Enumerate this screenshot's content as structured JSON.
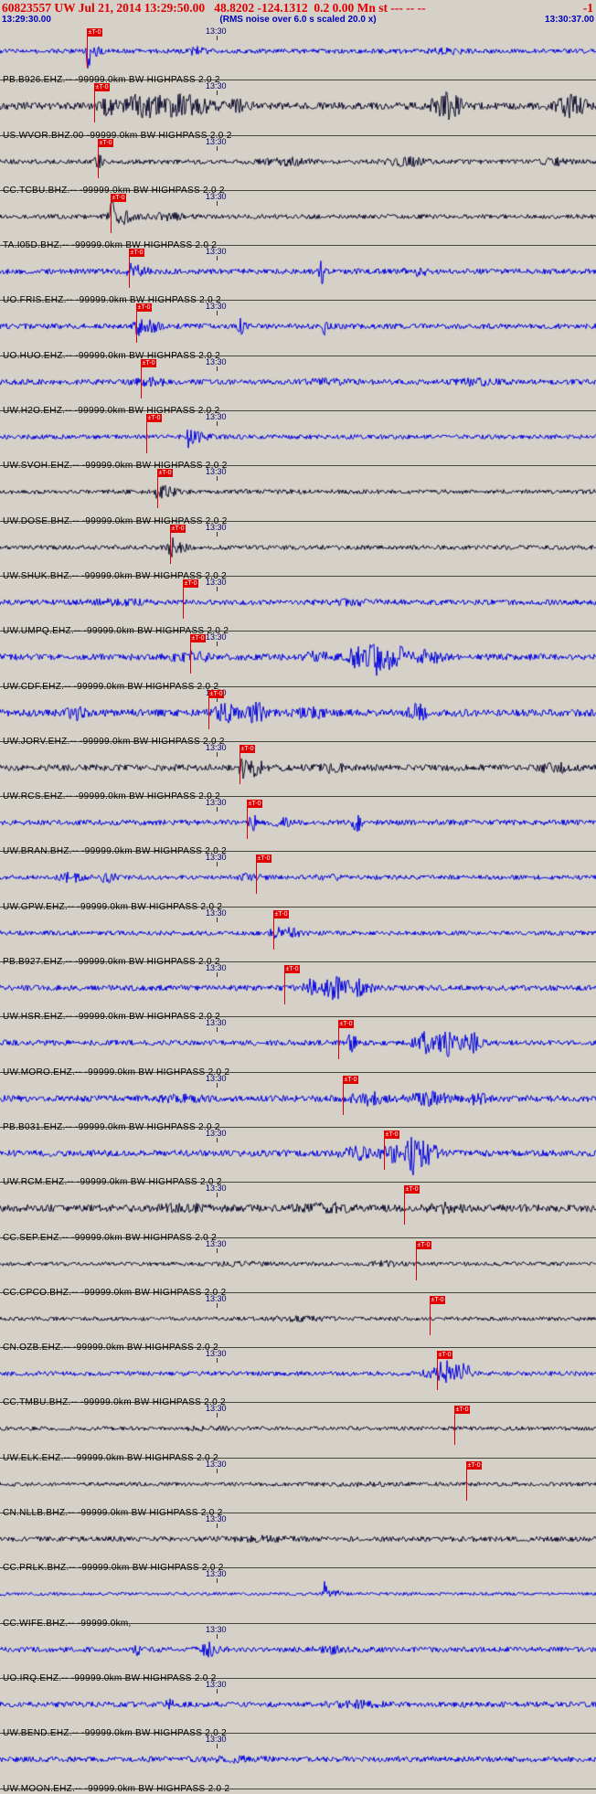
{
  "header": {
    "title": "60823557 UW Jul 21, 2014 13:29:50.00   48.8202 -124.1312  0.2 0.00 Mn st --- -- --",
    "right_value": "-1",
    "start_time": "13:29:30.00",
    "rms_note": "(RMS noise over 6.0 s scaled 20.0 x)",
    "end_time": "13:30:37.00"
  },
  "colors": {
    "blue": "#0000e0",
    "dark": "#0c0c2e",
    "pick": "#e00000",
    "background": "#d5d1c8"
  },
  "pick_flag_label": "±T-0",
  "tick": {
    "label": "13:30",
    "x_fraction": 0.3635
  },
  "traces": [
    {
      "label": "PB.B926.EHZ.-- -99999.0km BW HIGHPASS 2.0 2",
      "color": "blue",
      "pick_x": 0.146,
      "seed": 101,
      "base": 2.5,
      "bursts": [
        {
          "x": 0.148,
          "w": 0.004,
          "a": 16
        },
        {
          "x": 0.158,
          "w": 0.01,
          "a": 6
        },
        {
          "x": 0.33,
          "w": 0.02,
          "a": 3
        },
        {
          "x": 0.75,
          "w": 0.03,
          "a": 2
        }
      ]
    },
    {
      "label": "US.WVOR.BHZ.00 -99999.0km BW HIGHPASS 2.0 2",
      "color": "dark",
      "pick_x": 0.158,
      "seed": 102,
      "base": 4,
      "bursts": [
        {
          "x": 0.18,
          "w": 0.012,
          "a": 10
        },
        {
          "x": 0.24,
          "w": 0.03,
          "a": 14
        },
        {
          "x": 0.31,
          "w": 0.04,
          "a": 10
        },
        {
          "x": 0.4,
          "w": 0.02,
          "a": 5
        },
        {
          "x": 0.75,
          "w": 0.025,
          "a": 12
        },
        {
          "x": 0.96,
          "w": 0.025,
          "a": 10
        }
      ]
    },
    {
      "label": "CC.TCBU.BHZ.-- -99999.0km BW HIGHPASS 2.0 2",
      "color": "dark",
      "pick_x": 0.164,
      "seed": 103,
      "base": 2.5,
      "bursts": [
        {
          "x": 0.165,
          "w": 0.006,
          "a": 7
        },
        {
          "x": 0.48,
          "w": 0.04,
          "a": 3
        },
        {
          "x": 0.68,
          "w": 0.03,
          "a": 4
        },
        {
          "x": 0.93,
          "w": 0.02,
          "a": 3
        }
      ]
    },
    {
      "label": "TA.I05D.BHZ.-- -99999.0km BW HIGHPASS 2.0 2",
      "color": "dark",
      "pick_x": 0.186,
      "seed": 104,
      "base": 2.5,
      "bursts": [
        {
          "x": 0.187,
          "w": 0.004,
          "a": 22
        },
        {
          "x": 0.205,
          "w": 0.018,
          "a": 7
        },
        {
          "x": 0.28,
          "w": 0.03,
          "a": 3
        }
      ]
    },
    {
      "label": "UO.FRIS.EHZ.-- -99999.0km BW HIGHPASS 2.0 2",
      "color": "blue",
      "pick_x": 0.216,
      "seed": 105,
      "base": 3,
      "bursts": [
        {
          "x": 0.218,
          "w": 0.005,
          "a": 9
        },
        {
          "x": 0.235,
          "w": 0.015,
          "a": 5
        },
        {
          "x": 0.54,
          "w": 0.005,
          "a": 13
        },
        {
          "x": 0.7,
          "w": 0.02,
          "a": 3
        }
      ]
    },
    {
      "label": "UO.HUO.EHZ.-- -99999.0km BW HIGHPASS 2.0 2",
      "color": "blue",
      "pick_x": 0.229,
      "seed": 106,
      "base": 3,
      "bursts": [
        {
          "x": 0.231,
          "w": 0.005,
          "a": 11
        },
        {
          "x": 0.25,
          "w": 0.015,
          "a": 6
        },
        {
          "x": 0.405,
          "w": 0.006,
          "a": 7
        },
        {
          "x": 0.545,
          "w": 0.005,
          "a": 11
        }
      ]
    },
    {
      "label": "UW.H2O.EHZ.-- -99999.0km BW HIGHPASS 2.0 2",
      "color": "blue",
      "pick_x": 0.236,
      "seed": 107,
      "base": 3,
      "bursts": [
        {
          "x": 0.25,
          "w": 0.03,
          "a": 3
        },
        {
          "x": 0.55,
          "w": 0.04,
          "a": 2
        },
        {
          "x": 0.8,
          "w": 0.03,
          "a": 2.5
        }
      ]
    },
    {
      "label": "UW.SVOH.EHZ.-- -99999.0km BW HIGHPASS 2.0 2",
      "color": "blue",
      "pick_x": 0.246,
      "seed": 108,
      "base": 2.5,
      "bursts": [
        {
          "x": 0.318,
          "w": 0.005,
          "a": 13
        },
        {
          "x": 0.335,
          "w": 0.018,
          "a": 4
        }
      ]
    },
    {
      "label": "UW.DOSE.BHZ.-- -99999.0km BW HIGHPASS 2.0 2",
      "color": "dark",
      "pick_x": 0.264,
      "seed": 109,
      "base": 2.5,
      "bursts": [
        {
          "x": 0.266,
          "w": 0.004,
          "a": 12
        },
        {
          "x": 0.282,
          "w": 0.015,
          "a": 5
        }
      ]
    },
    {
      "label": "UW.SHUK.BHZ.-- -99999.0km BW HIGHPASS 2.0 2",
      "color": "dark",
      "pick_x": 0.285,
      "seed": 110,
      "base": 2.5,
      "bursts": [
        {
          "x": 0.287,
          "w": 0.005,
          "a": 13
        },
        {
          "x": 0.302,
          "w": 0.015,
          "a": 4
        }
      ]
    },
    {
      "label": "UW.UMPQ.EHZ.-- -99999.0km BW HIGHPASS 2.0 2",
      "color": "blue",
      "pick_x": 0.307,
      "seed": 111,
      "base": 3,
      "bursts": [
        {
          "x": 0.2,
          "w": 0.05,
          "a": 1.5
        },
        {
          "x": 0.6,
          "w": 0.05,
          "a": 1.5
        }
      ]
    },
    {
      "label": "UW.CDF.EHZ.-- -99999.0km BW HIGHPASS 2.0 2",
      "color": "blue",
      "pick_x": 0.319,
      "seed": 112,
      "base": 3.5,
      "bursts": [
        {
          "x": 0.32,
          "w": 0.03,
          "a": 4
        },
        {
          "x": 0.53,
          "w": 0.02,
          "a": 5
        },
        {
          "x": 0.6,
          "w": 0.02,
          "a": 10
        },
        {
          "x": 0.635,
          "w": 0.015,
          "a": 16
        },
        {
          "x": 0.665,
          "w": 0.02,
          "a": 10
        },
        {
          "x": 0.72,
          "w": 0.02,
          "a": 6
        }
      ]
    },
    {
      "label": "UW.JORV.EHZ.-- -99999.0km BW HIGHPASS 2.0 2",
      "color": "blue",
      "pick_x": 0.35,
      "seed": 113,
      "base": 4,
      "bursts": [
        {
          "x": 0.13,
          "w": 0.02,
          "a": 5
        },
        {
          "x": 0.38,
          "w": 0.02,
          "a": 8
        },
        {
          "x": 0.43,
          "w": 0.015,
          "a": 9
        },
        {
          "x": 0.52,
          "w": 0.02,
          "a": 5
        },
        {
          "x": 0.7,
          "w": 0.015,
          "a": 8
        }
      ]
    },
    {
      "label": "UW.RCS.EHZ.-- -99999.0km BW HIGHPASS 2.0 2",
      "color": "dark",
      "pick_x": 0.402,
      "seed": 114,
      "base": 3.5,
      "bursts": [
        {
          "x": 0.405,
          "w": 0.008,
          "a": 10
        },
        {
          "x": 0.43,
          "w": 0.012,
          "a": 8
        },
        {
          "x": 0.56,
          "w": 0.02,
          "a": 4
        },
        {
          "x": 0.93,
          "w": 0.02,
          "a": 5
        }
      ]
    },
    {
      "label": "UW.BRAN.BHZ.-- -99999.0km BW HIGHPASS 2.0 2",
      "color": "blue",
      "pick_x": 0.414,
      "seed": 115,
      "base": 3,
      "bursts": [
        {
          "x": 0.425,
          "w": 0.006,
          "a": 10
        },
        {
          "x": 0.47,
          "w": 0.015,
          "a": 4
        },
        {
          "x": 0.6,
          "w": 0.008,
          "a": 8
        }
      ]
    },
    {
      "label": "UW.GPW.EHZ.-- -99999.0km BW HIGHPASS 2.0 2",
      "color": "blue",
      "pick_x": 0.429,
      "seed": 116,
      "base": 2.5,
      "bursts": [
        {
          "x": 0.12,
          "w": 0.02,
          "a": 4
        },
        {
          "x": 0.18,
          "w": 0.015,
          "a": 4
        },
        {
          "x": 0.42,
          "w": 0.02,
          "a": 2.5
        },
        {
          "x": 0.55,
          "w": 0.02,
          "a": 2.5
        }
      ]
    },
    {
      "label": "PB.B927.EHZ.-- -99999.0km BW HIGHPASS 2.0 2",
      "color": "blue",
      "pick_x": 0.459,
      "seed": 117,
      "base": 2.5,
      "bursts": [
        {
          "x": 0.46,
          "w": 0.008,
          "a": 8
        },
        {
          "x": 0.485,
          "w": 0.02,
          "a": 4
        }
      ]
    },
    {
      "label": "UW.HSR.EHZ.-- -99999.0km BW HIGHPASS 2.0 2",
      "color": "blue",
      "pick_x": 0.477,
      "seed": 118,
      "base": 3,
      "bursts": [
        {
          "x": 0.52,
          "w": 0.01,
          "a": 8
        },
        {
          "x": 0.56,
          "w": 0.02,
          "a": 12
        },
        {
          "x": 0.6,
          "w": 0.02,
          "a": 8
        }
      ]
    },
    {
      "label": "UW.MORO.EHZ.-- -99999.0km BW HIGHPASS 2.0 2",
      "color": "blue",
      "pick_x": 0.567,
      "seed": 119,
      "base": 3,
      "bursts": [
        {
          "x": 0.59,
          "w": 0.008,
          "a": 8
        },
        {
          "x": 0.71,
          "w": 0.015,
          "a": 10
        },
        {
          "x": 0.75,
          "w": 0.02,
          "a": 14
        },
        {
          "x": 0.79,
          "w": 0.015,
          "a": 10
        }
      ]
    },
    {
      "label": "PB.B031.EHZ.-- -99999.0km BW HIGHPASS 2.0 2",
      "color": "blue",
      "pick_x": 0.575,
      "seed": 120,
      "base": 3.5,
      "bursts": [
        {
          "x": 0.3,
          "w": 0.04,
          "a": 2
        },
        {
          "x": 0.62,
          "w": 0.03,
          "a": 5
        },
        {
          "x": 0.72,
          "w": 0.03,
          "a": 6
        },
        {
          "x": 0.8,
          "w": 0.02,
          "a": 5
        }
      ]
    },
    {
      "label": "UW.RCM.EHZ.-- -99999.0km BW HIGHPASS 2.0 2",
      "color": "blue",
      "pick_x": 0.644,
      "seed": 121,
      "base": 3.5,
      "bursts": [
        {
          "x": 0.6,
          "w": 0.025,
          "a": 6
        },
        {
          "x": 0.66,
          "w": 0.02,
          "a": 8
        },
        {
          "x": 0.695,
          "w": 0.012,
          "a": 20
        },
        {
          "x": 0.72,
          "w": 0.015,
          "a": 10
        }
      ]
    },
    {
      "label": "CC.SEP.EHZ.-- -99999.0km BW HIGHPASS 2.0 2",
      "color": "dark",
      "pick_x": 0.678,
      "seed": 122,
      "base": 4,
      "bursts": [
        {
          "x": 0.3,
          "w": 0.05,
          "a": 2
        },
        {
          "x": 0.55,
          "w": 0.04,
          "a": 3
        },
        {
          "x": 0.75,
          "w": 0.03,
          "a": 3
        }
      ]
    },
    {
      "label": "CC.CPCO.BHZ.-- -99999.0km BW HIGHPASS 2.0 2",
      "color": "dark",
      "pick_x": 0.698,
      "seed": 123,
      "base": 2.2,
      "bursts": [
        {
          "x": 0.4,
          "w": 0.04,
          "a": 1.5
        },
        {
          "x": 0.65,
          "w": 0.03,
          "a": 2
        }
      ]
    },
    {
      "label": "CN.OZB.EHZ.-- -99999.0km BW HIGHPASS 2.0 2",
      "color": "dark",
      "pick_x": 0.721,
      "seed": 124,
      "base": 2.2,
      "bursts": [
        {
          "x": 0.5,
          "w": 0.05,
          "a": 1.5
        }
      ]
    },
    {
      "label": "CC.TMBU.BHZ.-- -99999.0km BW HIGHPASS 2.0 2",
      "color": "blue",
      "pick_x": 0.733,
      "seed": 125,
      "base": 2.5,
      "bursts": [
        {
          "x": 0.72,
          "w": 0.01,
          "a": 6
        },
        {
          "x": 0.745,
          "w": 0.012,
          "a": 14
        },
        {
          "x": 0.775,
          "w": 0.015,
          "a": 12
        }
      ]
    },
    {
      "label": "UW.ELK.EHZ.-- -99999.0km BW HIGHPASS 2.0 2",
      "color": "dark",
      "pick_x": 0.762,
      "seed": 126,
      "base": 2.2,
      "bursts": [
        {
          "x": 0.35,
          "w": 0.05,
          "a": 1
        }
      ]
    },
    {
      "label": "CN.NLLB.BHZ.-- -99999.0km BW HIGHPASS 2.0 2",
      "color": "dark",
      "pick_x": 0.782,
      "seed": 127,
      "base": 2.2,
      "bursts": [
        {
          "x": 0.6,
          "w": 0.05,
          "a": 1
        }
      ]
    },
    {
      "label": "CC.PRLK.BHZ.-- -99999.0km BW HIGHPASS 2.0 2",
      "color": "dark",
      "pick_x": null,
      "seed": 128,
      "base": 2.8,
      "bursts": [
        {
          "x": 0.45,
          "w": 0.06,
          "a": 1.5
        }
      ]
    },
    {
      "label": "CC.WIFE.BHZ.-- -99999.0km,",
      "color": "blue",
      "pick_x": null,
      "seed": 129,
      "base": 1.8,
      "bursts": [
        {
          "x": 0.545,
          "w": 0.004,
          "a": 12
        },
        {
          "x": 0.56,
          "w": 0.012,
          "a": 3
        }
      ]
    },
    {
      "label": "UO.IRQ.EHZ.-- -99999.0km BW HIGHPASS 2.0 2",
      "color": "blue",
      "pick_x": null,
      "seed": 130,
      "base": 3,
      "bursts": [
        {
          "x": 0.23,
          "w": 0.005,
          "a": 7
        },
        {
          "x": 0.35,
          "w": 0.015,
          "a": 8
        },
        {
          "x": 0.55,
          "w": 0.02,
          "a": 3
        }
      ]
    },
    {
      "label": "UW.BEND.EHZ.-- -99999.0km BW HIGHPASS 2.0 2",
      "color": "blue",
      "pick_x": null,
      "seed": 131,
      "base": 3,
      "bursts": [
        {
          "x": 0.285,
          "w": 0.005,
          "a": 6
        },
        {
          "x": 0.6,
          "w": 0.04,
          "a": 2
        }
      ]
    },
    {
      "label": "UW.MOON.EHZ.-- -99999.0km BW HIGHPASS 2.0 2",
      "color": "blue",
      "pick_x": null,
      "seed": 132,
      "base": 3,
      "bursts": [
        {
          "x": 0.4,
          "w": 0.04,
          "a": 2
        }
      ]
    }
  ]
}
